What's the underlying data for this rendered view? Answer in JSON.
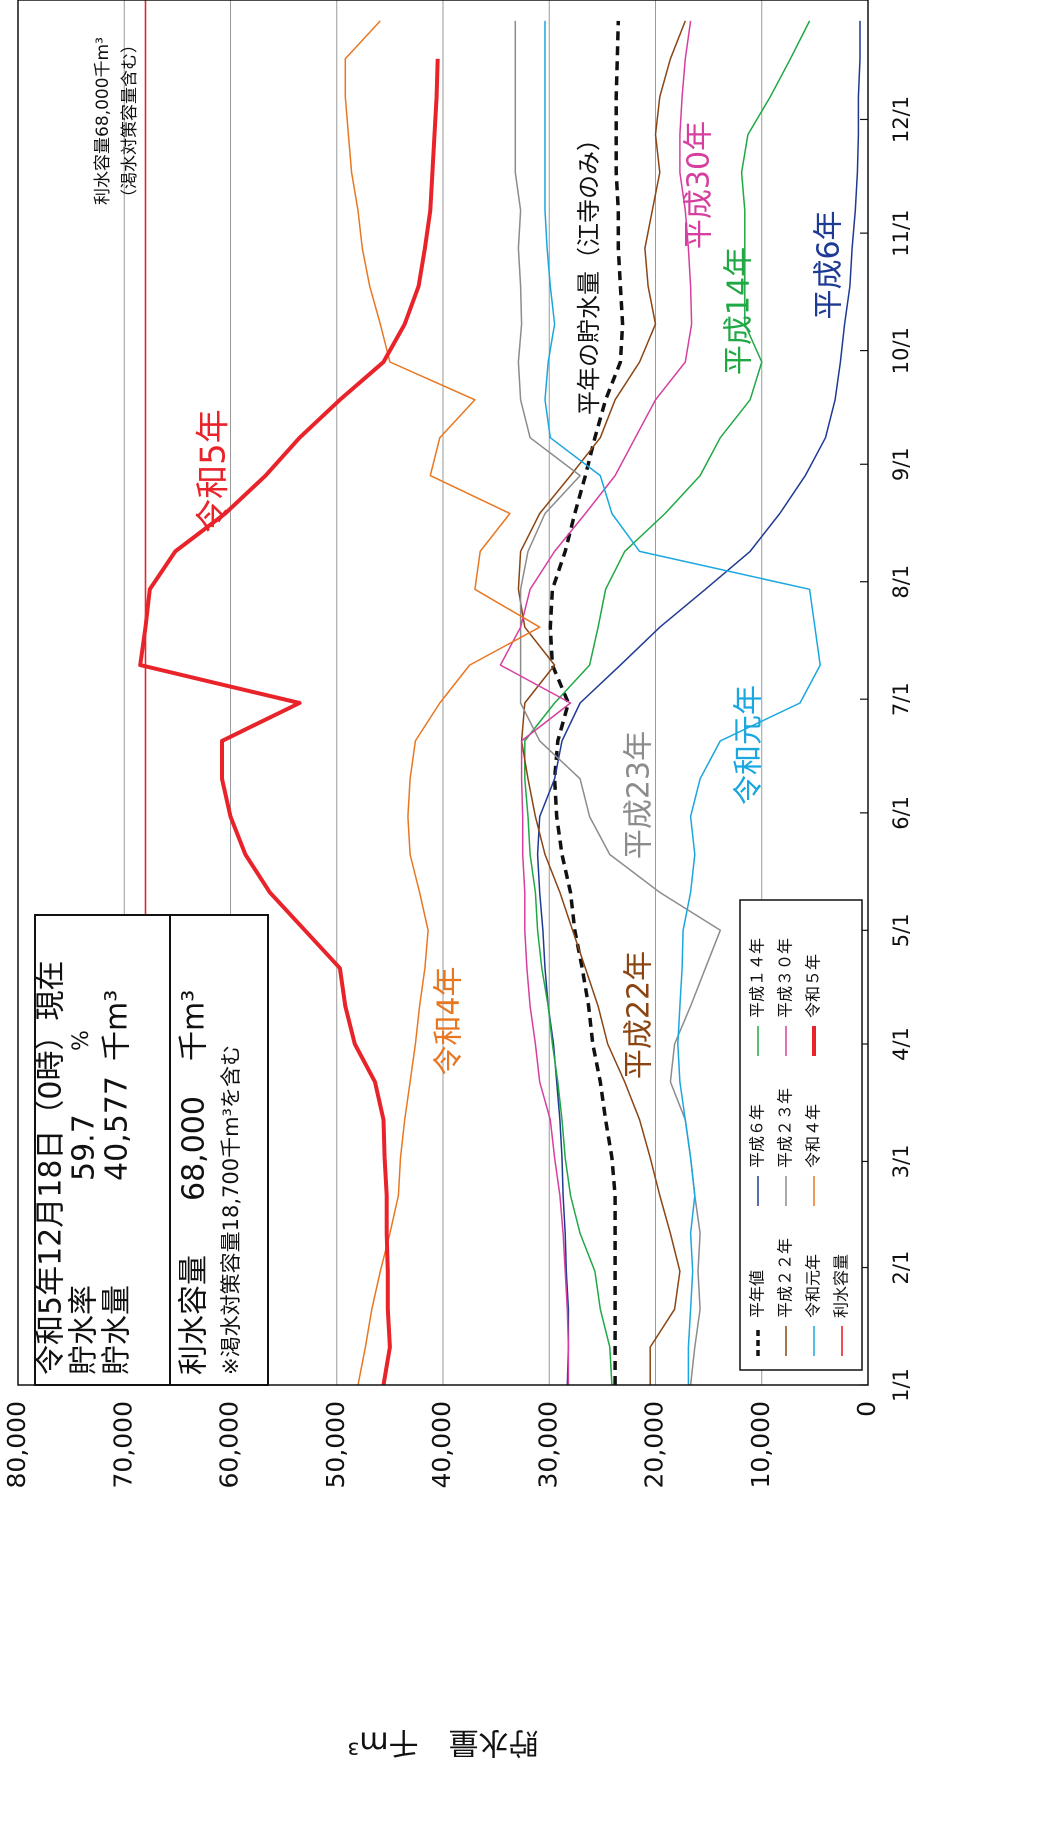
{
  "chart_data": {
    "type": "line",
    "y_title": "貯水量　千m³",
    "x": [
      0,
      10,
      20,
      30,
      40,
      50,
      60,
      70,
      80,
      90,
      100,
      110,
      120,
      130,
      140,
      150,
      160,
      170,
      180,
      190,
      200,
      210,
      220,
      230,
      240,
      250,
      260,
      270,
      280,
      290,
      300,
      310,
      320,
      330,
      340,
      350,
      360
    ],
    "xlim": [
      0,
      365
    ],
    "xticks": [
      {
        "value": 0,
        "label": "1/1"
      },
      {
        "value": 31,
        "label": "2/1"
      },
      {
        "value": 59,
        "label": "3/1"
      },
      {
        "value": 90,
        "label": "4/1"
      },
      {
        "value": 120,
        "label": "5/1"
      },
      {
        "value": 151,
        "label": "6/1"
      },
      {
        "value": 181,
        "label": "7/1"
      },
      {
        "value": 212,
        "label": "8/1"
      },
      {
        "value": 243,
        "label": "9/1"
      },
      {
        "value": 273,
        "label": "10/1"
      },
      {
        "value": 304,
        "label": "11/1"
      },
      {
        "value": 334,
        "label": "12/1"
      }
    ],
    "ylim": [
      0,
      80000
    ],
    "yticks": [
      0,
      {
        "value": 10000,
        "label": "10,000"
      },
      {
        "value": 20000,
        "label": "20,000"
      },
      {
        "value": 30000,
        "label": "30,000"
      },
      {
        "value": 40000,
        "label": "40,000"
      },
      {
        "value": 50000,
        "label": "50,000"
      },
      {
        "value": 60000,
        "label": "60,000"
      },
      {
        "value": 70000,
        "label": "70,000"
      },
      {
        "value": 80000,
        "label": "80,000"
      }
    ],
    "grid": true,
    "series": [
      {
        "name": "平年値",
        "color": "#111111",
        "dashed": true,
        "width": 3.5,
        "values": [
          23800,
          23800,
          23800,
          23800,
          23800,
          23800,
          24100,
          24700,
          25200,
          25900,
          26300,
          26900,
          27600,
          28000,
          28800,
          29300,
          29500,
          29200,
          28200,
          29700,
          29900,
          29700,
          28500,
          27600,
          26600,
          25700,
          24700,
          23300,
          23100,
          23300,
          23500,
          23500,
          23700,
          23700,
          23700,
          23600,
          23500
        ]
      },
      {
        "name": "平成６年",
        "color": "#1f3a93",
        "width": 1.5,
        "values": [
          28300,
          28200,
          28200,
          28400,
          28500,
          28700,
          28800,
          29000,
          29300,
          29600,
          30100,
          30400,
          30600,
          30900,
          31100,
          30900,
          29500,
          28800,
          27100,
          23300,
          19600,
          15300,
          11100,
          8300,
          5900,
          4000,
          3100,
          2600,
          2200,
          1700,
          1500,
          1200,
          1000,
          900,
          900,
          750,
          750
        ]
      },
      {
        "name": "平成１４年",
        "color": "#1fa843",
        "width": 1.5,
        "values": [
          24100,
          24300,
          25200,
          25700,
          27100,
          28000,
          28500,
          28800,
          29200,
          29700,
          30100,
          30700,
          31100,
          31300,
          31800,
          32000,
          32300,
          32300,
          29500,
          26200,
          25400,
          24700,
          22900,
          19100,
          15800,
          13900,
          11100,
          10000,
          11600,
          11600,
          11600,
          11600,
          11900,
          11300,
          9200,
          7300,
          5500
        ]
      },
      {
        "name": "平成２２年",
        "color": "#8b4513",
        "width": 1.5,
        "values": [
          20500,
          20500,
          18200,
          17700,
          18600,
          19600,
          20500,
          21500,
          22900,
          24500,
          25400,
          26600,
          27800,
          29000,
          30400,
          31300,
          32000,
          32600,
          32300,
          29500,
          32300,
          32900,
          32700,
          30900,
          28000,
          25200,
          23800,
          21500,
          20000,
          20700,
          21000,
          20300,
          19600,
          20000,
          19600,
          18600,
          17200
        ]
      },
      {
        "name": "平成２３年",
        "color": "#8c8c8c",
        "width": 1.5,
        "values": [
          16700,
          16300,
          15800,
          16000,
          15800,
          16300,
          16700,
          17200,
          18600,
          18200,
          16700,
          15300,
          13900,
          19600,
          24300,
          26200,
          27100,
          30900,
          32700,
          32700,
          32700,
          32700,
          32000,
          30400,
          27100,
          31800,
          32700,
          32900,
          32600,
          32700,
          32900,
          32700,
          33200,
          33200,
          33200,
          33200,
          33200
        ]
      },
      {
        "name": "平成３０年",
        "color": "#d63fa0",
        "width": 1.5,
        "values": [
          28200,
          28200,
          28300,
          28500,
          28700,
          29000,
          29500,
          29900,
          30900,
          31300,
          31800,
          32100,
          32300,
          32300,
          32500,
          32500,
          32600,
          32600,
          28000,
          34600,
          32700,
          31800,
          29500,
          26600,
          23800,
          21900,
          20000,
          17200,
          16600,
          16700,
          16900,
          17200,
          17700,
          17700,
          17500,
          17200,
          16700
        ]
      },
      {
        "name": "令和元年",
        "color": "#1aa7e0",
        "width": 1.5,
        "values": [
          16900,
          16900,
          16700,
          16500,
          16700,
          16300,
          16700,
          17200,
          17700,
          17900,
          17700,
          17500,
          17400,
          16700,
          16300,
          16700,
          15800,
          13900,
          6400,
          4500,
          5000,
          5500,
          21500,
          24100,
          25200,
          29900,
          30400,
          30100,
          29500,
          29900,
          30200,
          30400,
          30400,
          30400,
          30400,
          30400,
          30400
        ]
      },
      {
        "name": "令和４年",
        "color": "#e87722",
        "width": 1.5,
        "values": [
          48000,
          47300,
          46700,
          45900,
          45000,
          44200,
          44000,
          43600,
          43100,
          42600,
          42200,
          41700,
          41400,
          42200,
          43100,
          43300,
          43100,
          42600,
          40300,
          37500,
          30900,
          37000,
          36500,
          33700,
          41200,
          40300,
          37000,
          45000,
          45900,
          46900,
          47600,
          48000,
          48600,
          48900,
          49200,
          49200,
          45900
        ]
      },
      {
        "name": "令和５年",
        "color": "#e8232a",
        "width": 4,
        "values": [
          45600,
          45000,
          45200,
          45200,
          45300,
          45300,
          45500,
          45600,
          46400,
          48300,
          49200,
          49700,
          53000,
          56300,
          58600,
          60000,
          60800,
          60800,
          53500,
          68500,
          68000,
          67600,
          65200,
          60500,
          56700,
          53500,
          49700,
          45600,
          43600,
          42300,
          41700,
          41200,
          41000,
          40800,
          40600,
          40500,
          null
        ]
      }
    ],
    "reference_lines": [
      {
        "name": "利水容量",
        "value": 68000,
        "color": "#e8232a"
      }
    ],
    "annotations": [
      {
        "text": "令和5年",
        "color": "#e8232a"
      },
      {
        "text": "令和4年",
        "color": "#e87722"
      },
      {
        "text": "平成22年",
        "color": "#8b4513"
      },
      {
        "text": "平成23年",
        "color": "#8c8c8c"
      },
      {
        "text": "令和元年",
        "color": "#1aa7e0"
      },
      {
        "text": "平年の貯水量（江寺のみ）",
        "color": "#111111"
      },
      {
        "text": "平成30年",
        "color": "#d63fa0"
      },
      {
        "text": "平成14年",
        "color": "#1fa843"
      },
      {
        "text": "平成6年",
        "color": "#1f3a93"
      },
      {
        "text": "利水容量68,000千m³",
        "color": "#111111"
      },
      {
        "text": "（渇水対策容量含む）",
        "color": "#111111"
      }
    ],
    "info_box": {
      "date": "令和5年12月18日（0時）現在",
      "rate_label": "貯水率",
      "rate": "59.7",
      "rate_unit": "%",
      "storage_label": "貯水量",
      "storage": "40,577",
      "storage_unit": "千m³",
      "capacity_label": "利水容量",
      "capacity": "68,000",
      "capacity_unit": "千m³",
      "note": "※渇水対策容量18,700千m³を含む"
    }
  }
}
